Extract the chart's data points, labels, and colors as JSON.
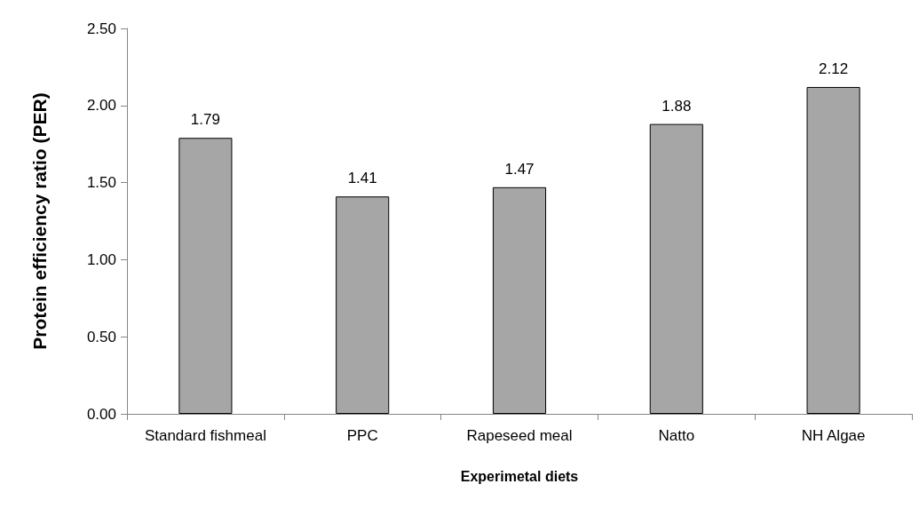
{
  "chart_data": {
    "type": "bar",
    "xlabel": "Experimetal diets",
    "ylabel": "Protein efficiency ratio (PER)",
    "categories": [
      "Standard fishmeal",
      "PPC",
      "Rapeseed meal",
      "Natto",
      "NH Algae"
    ],
    "values": [
      1.79,
      1.41,
      1.47,
      1.88,
      2.12
    ],
    "color": "#a6a6a6",
    "ylim": [
      0,
      2.5
    ],
    "yticks": [
      {
        "value": 0,
        "label": "0.00"
      },
      {
        "value": 0.5,
        "label": "0.50"
      },
      {
        "value": 1,
        "label": "1.00"
      },
      {
        "value": 1.5,
        "label": "1.50"
      },
      {
        "value": 2,
        "label": "2.00"
      },
      {
        "value": 2.5,
        "label": "2.50"
      }
    ],
    "grid": false,
    "data_labels": true
  }
}
